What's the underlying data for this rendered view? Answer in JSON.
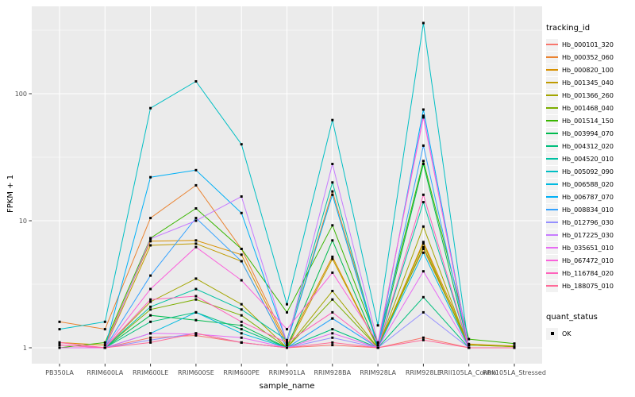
{
  "chart_data": {
    "type": "line",
    "xlabel": "sample_name",
    "ylabel": "FPKM + 1",
    "y_scale": "log10",
    "ylim": [
      1,
      400
    ],
    "y_ticks": [
      1,
      10,
      100
    ],
    "y_minor_ticks": [
      3.1623,
      31.623,
      316.23
    ],
    "legend_title": "tracking_id",
    "legend_position": "right",
    "quant_legend": {
      "title": "quant_status",
      "items": [
        "OK"
      ]
    },
    "panel_bg": "#EBEBEB",
    "grid_color": "#FFFFFF",
    "axis_text_color": "#4D4D4D",
    "tick_color": "#333333",
    "point_color": "#000000",
    "categories": [
      "PB350LA",
      "RRIM600LA",
      "RRIM600LE",
      "RRIM600SE",
      "RRIM600PE",
      "RRIM901LA",
      "RRIM928BA",
      "RRIM928LA",
      "RRIM928LE",
      "RRII105LA_Control",
      "RRII105LA_Stressed"
    ],
    "series": [
      {
        "name": "Hb_000101_320",
        "color": "#F8766D",
        "values": [
          1.05,
          1.0,
          1.2,
          1.25,
          1.1,
          1.0,
          1.05,
          1.0,
          1.2,
          1.0,
          1.0
        ]
      },
      {
        "name": "Hb_000352_060",
        "color": "#EA8331",
        "values": [
          1.6,
          1.4,
          10.5,
          19,
          6.0,
          1.1,
          17,
          1.05,
          6.0,
          1.05,
          1.02
        ]
      },
      {
        "name": "Hb_000820_100",
        "color": "#D89000",
        "values": [
          1.1,
          1.05,
          6.9,
          7.0,
          5.4,
          1.05,
          5.2,
          1.0,
          6.8,
          1.07,
          1.03
        ]
      },
      {
        "name": "Hb_001345_040",
        "color": "#C09B00",
        "values": [
          1.0,
          1.0,
          6.4,
          6.6,
          4.8,
          1.0,
          5.0,
          1.0,
          6.6,
          1.0,
          1.0
        ]
      },
      {
        "name": "Hb_001366_260",
        "color": "#A3A500",
        "values": [
          1.0,
          1.0,
          2.3,
          3.5,
          2.2,
          1.0,
          2.8,
          1.0,
          9.0,
          1.0,
          1.0
        ]
      },
      {
        "name": "Hb_001468_040",
        "color": "#7CAE00",
        "values": [
          1.0,
          1.0,
          2.0,
          2.4,
          1.8,
          1.0,
          2.4,
          1.0,
          6.2,
          1.05,
          1.02
        ]
      },
      {
        "name": "Hb_001514_150",
        "color": "#39B600",
        "values": [
          1.0,
          1.1,
          7.3,
          12.5,
          6.0,
          1.9,
          9.2,
          1.1,
          29.5,
          1.17,
          1.08
        ]
      },
      {
        "name": "Hb_003994_070",
        "color": "#00BB4E",
        "values": [
          1.0,
          1.0,
          1.8,
          1.65,
          1.5,
          1.0,
          7.0,
          1.0,
          28.0,
          1.0,
          1.0
        ]
      },
      {
        "name": "Hb_004312_020",
        "color": "#00BF7D",
        "values": [
          1.0,
          1.0,
          1.6,
          1.9,
          1.4,
          1.0,
          1.4,
          1.0,
          2.5,
          1.0,
          1.0
        ]
      },
      {
        "name": "Hb_004520_010",
        "color": "#00C1A3",
        "values": [
          1.0,
          1.0,
          2.1,
          2.9,
          2.0,
          1.15,
          20.0,
          1.0,
          14.0,
          1.0,
          1.0
        ]
      },
      {
        "name": "Hb_005092_090",
        "color": "#00BFC4",
        "values": [
          1.4,
          1.6,
          77,
          125,
          40,
          2.2,
          62,
          1.5,
          360,
          1.0,
          1.0
        ]
      },
      {
        "name": "Hb_006588_020",
        "color": "#00BAE0",
        "values": [
          1.0,
          1.0,
          1.3,
          1.9,
          1.3,
          1.0,
          1.7,
          1.0,
          5.6,
          1.0,
          1.0
        ]
      },
      {
        "name": "Hb_006787_070",
        "color": "#00B0F6",
        "values": [
          1.0,
          1.0,
          22,
          25,
          11.5,
          1.1,
          16,
          1.0,
          75,
          1.0,
          1.0
        ]
      },
      {
        "name": "Hb_008834_010",
        "color": "#35A2FF",
        "values": [
          1.0,
          1.0,
          3.7,
          10.5,
          4.8,
          1.0,
          1.7,
          1.0,
          39,
          1.0,
          1.0
        ]
      },
      {
        "name": "Hb_012796_030",
        "color": "#9590FF",
        "values": [
          1.0,
          1.0,
          1.15,
          1.3,
          1.1,
          1.0,
          1.2,
          1.0,
          1.9,
          1.0,
          1.0
        ]
      },
      {
        "name": "Hb_017225_030",
        "color": "#C77CFF",
        "values": [
          1.0,
          1.0,
          7.2,
          10.0,
          15.5,
          1.1,
          28,
          1.1,
          67,
          1.0,
          1.0
        ]
      },
      {
        "name": "Hb_035651_010",
        "color": "#E76BF3",
        "values": [
          1.0,
          1.0,
          1.3,
          1.28,
          1.2,
          1.0,
          1.3,
          1.0,
          4.0,
          1.0,
          1.0
        ]
      },
      {
        "name": "Hb_067472_010",
        "color": "#FA62DB",
        "values": [
          1.1,
          1.0,
          2.9,
          6.2,
          3.4,
          1.4,
          3.9,
          1.1,
          65,
          1.0,
          1.0
        ]
      },
      {
        "name": "Hb_116784_020",
        "color": "#FF62BC",
        "values": [
          1.05,
          1.0,
          2.4,
          2.55,
          1.6,
          1.1,
          1.9,
          1.0,
          16,
          1.0,
          1.0
        ]
      },
      {
        "name": "Hb_188075_010",
        "color": "#FF6A98",
        "values": [
          1.1,
          1.0,
          1.1,
          1.3,
          1.1,
          1.0,
          1.1,
          1.0,
          1.15,
          1.0,
          1.0
        ]
      }
    ]
  }
}
